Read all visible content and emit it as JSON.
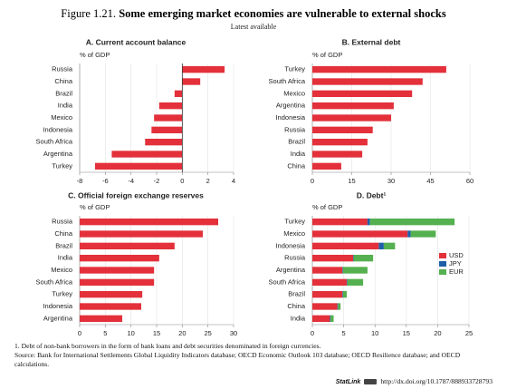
{
  "header": {
    "label": "Figure 1.21.",
    "title": "Some emerging market economies are vulnerable to external shocks",
    "subtitle": "Latest available"
  },
  "chart_data": [
    {
      "type": "bar",
      "orientation": "horizontal",
      "title": "A. Current account balance",
      "unit": "% of GDP",
      "color": "#e3303a",
      "categories": [
        "Russia",
        "China",
        "Brazil",
        "India",
        "Mexico",
        "Indonesia",
        "South Africa",
        "Argentina",
        "Turkey"
      ],
      "values": [
        3.3,
        1.4,
        -0.6,
        -1.8,
        -2.2,
        -2.4,
        -2.9,
        -5.5,
        -6.8
      ],
      "xlim": [
        -8,
        4
      ],
      "xticks": [
        -8,
        -6,
        -4,
        -2,
        0,
        2,
        4
      ]
    },
    {
      "type": "bar",
      "orientation": "horizontal",
      "title": "B. External debt",
      "unit": "% of GDP",
      "color": "#e3303a",
      "categories": [
        "Turkey",
        "South Africa",
        "Mexico",
        "Argentina",
        "Indonesia",
        "Russia",
        "Brazil",
        "India",
        "China"
      ],
      "values": [
        51,
        42,
        38,
        31,
        30,
        23,
        21,
        19,
        11
      ],
      "xlim": [
        0,
        60
      ],
      "xticks": [
        0,
        15,
        30,
        45,
        60
      ]
    },
    {
      "type": "bar",
      "orientation": "horizontal",
      "title": "C. Official foreign exchange reserves",
      "unit": "% of GDP",
      "color": "#e3303a",
      "categories": [
        "Russia",
        "China",
        "Brazil",
        "India",
        "Mexico",
        "South Africa",
        "Turkey",
        "Indonesia",
        "Argentina"
      ],
      "values": [
        27,
        24,
        18.5,
        15.5,
        14.5,
        14.5,
        12.2,
        12,
        8.3
      ],
      "xlim": [
        0,
        30
      ],
      "xticks": [
        0,
        5,
        10,
        15,
        20,
        25,
        30
      ]
    },
    {
      "type": "stacked_bar",
      "orientation": "horizontal",
      "title": "D. Debt¹",
      "unit": "% of GDP",
      "categories": [
        "Turkey",
        "Mexico",
        "Indonesia",
        "Russia",
        "Argentina",
        "South Africa",
        "Brazil",
        "China",
        "India"
      ],
      "series": [
        {
          "name": "USD",
          "color": "#e3303a",
          "values": [
            8.8,
            15.2,
            10.6,
            6.5,
            4.8,
            5.5,
            4.8,
            4.0,
            2.8
          ]
        },
        {
          "name": "JPY",
          "color": "#1f5fa8",
          "values": [
            0.4,
            0.5,
            0.8,
            0.1,
            0.1,
            0.1,
            0.1,
            0.1,
            0.1
          ]
        },
        {
          "name": "EUR",
          "color": "#55b04f",
          "values": [
            13.5,
            4.0,
            1.8,
            3.1,
            3.9,
            2.5,
            0.6,
            0.4,
            0.5
          ]
        }
      ],
      "xlim": [
        0,
        25
      ],
      "xticks": [
        0,
        5,
        10,
        15,
        20,
        25
      ]
    }
  ],
  "notes": {
    "footnote": "1. Debt of non-bank borrowers in the form of bank loans and debt securities denominated in foreign currencies.",
    "source": "Source: Bank for International Settlements Global Liquidity Indicators database; OECD Economic Outlook 103 database; OECD Resilience database; and OECD calculations.",
    "statlink_label": "StatLink",
    "statlink_url": "http://dx.doi.org/10.1787/888933728793"
  }
}
